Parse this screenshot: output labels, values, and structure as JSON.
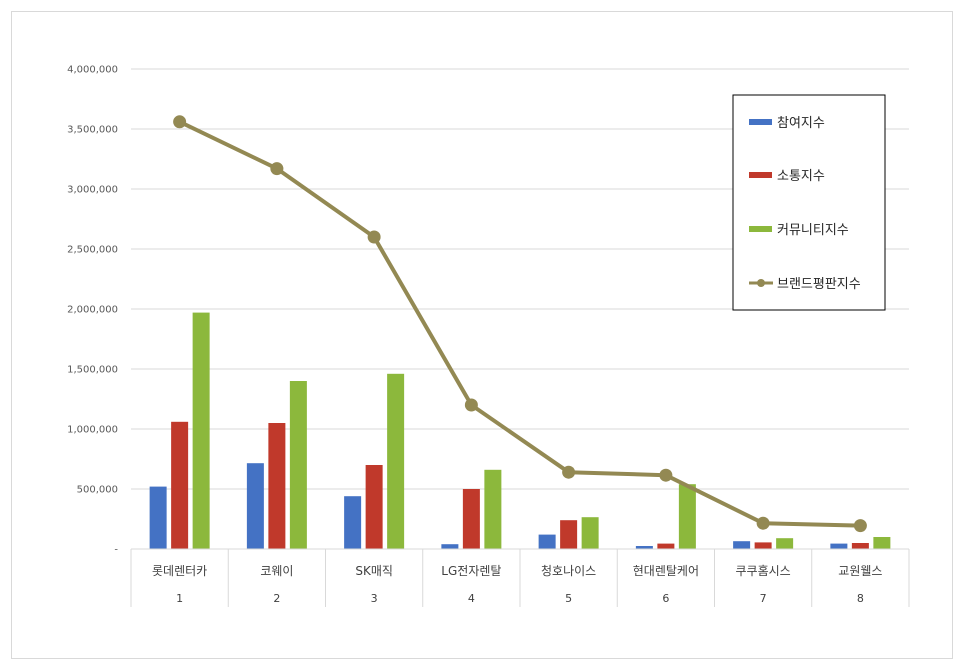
{
  "chart_data": {
    "type": "bar",
    "title": "",
    "xlabel": "",
    "ylabel": "",
    "ylim": [
      0,
      4000000
    ],
    "y_ticks": [
      {
        "value": 0,
        "label": "-"
      },
      {
        "value": 500000,
        "label": "500,000"
      },
      {
        "value": 1000000,
        "label": "1,000,000"
      },
      {
        "value": 1500000,
        "label": "1,500,000"
      },
      {
        "value": 2000000,
        "label": "2,000,000"
      },
      {
        "value": 2500000,
        "label": "2,500,000"
      },
      {
        "value": 3000000,
        "label": "3,000,000"
      },
      {
        "value": 3500000,
        "label": "3,500,000"
      },
      {
        "value": 4000000,
        "label": "4,000,000"
      }
    ],
    "categories": [
      "롯데렌터카",
      "코웨이",
      "SK매직",
      "LG전자렌탈",
      "청호나이스",
      "현대렌탈케어",
      "쿠쿠홈시스",
      "교원웰스"
    ],
    "category_index": [
      "1",
      "2",
      "3",
      "4",
      "5",
      "6",
      "7",
      "8"
    ],
    "series": [
      {
        "name": "참여지수",
        "kind": "bar",
        "color": "#4472c4",
        "values": [
          520000,
          715000,
          440000,
          40000,
          120000,
          25000,
          65000,
          45000
        ]
      },
      {
        "name": "소통지수",
        "kind": "bar",
        "color": "#c0392b",
        "values": [
          1060000,
          1050000,
          700000,
          500000,
          240000,
          45000,
          55000,
          50000
        ]
      },
      {
        "name": "커뮤니티지수",
        "kind": "bar",
        "color": "#8cb83c",
        "values": [
          1970000,
          1400000,
          1460000,
          660000,
          265000,
          540000,
          90000,
          100000
        ]
      },
      {
        "name": "브랜드평판지수",
        "kind": "line",
        "color": "#938953",
        "values": [
          3560000,
          3170000,
          2600000,
          1200000,
          640000,
          615000,
          215000,
          195000
        ]
      }
    ],
    "grid": true,
    "legend_position": "top-right"
  }
}
